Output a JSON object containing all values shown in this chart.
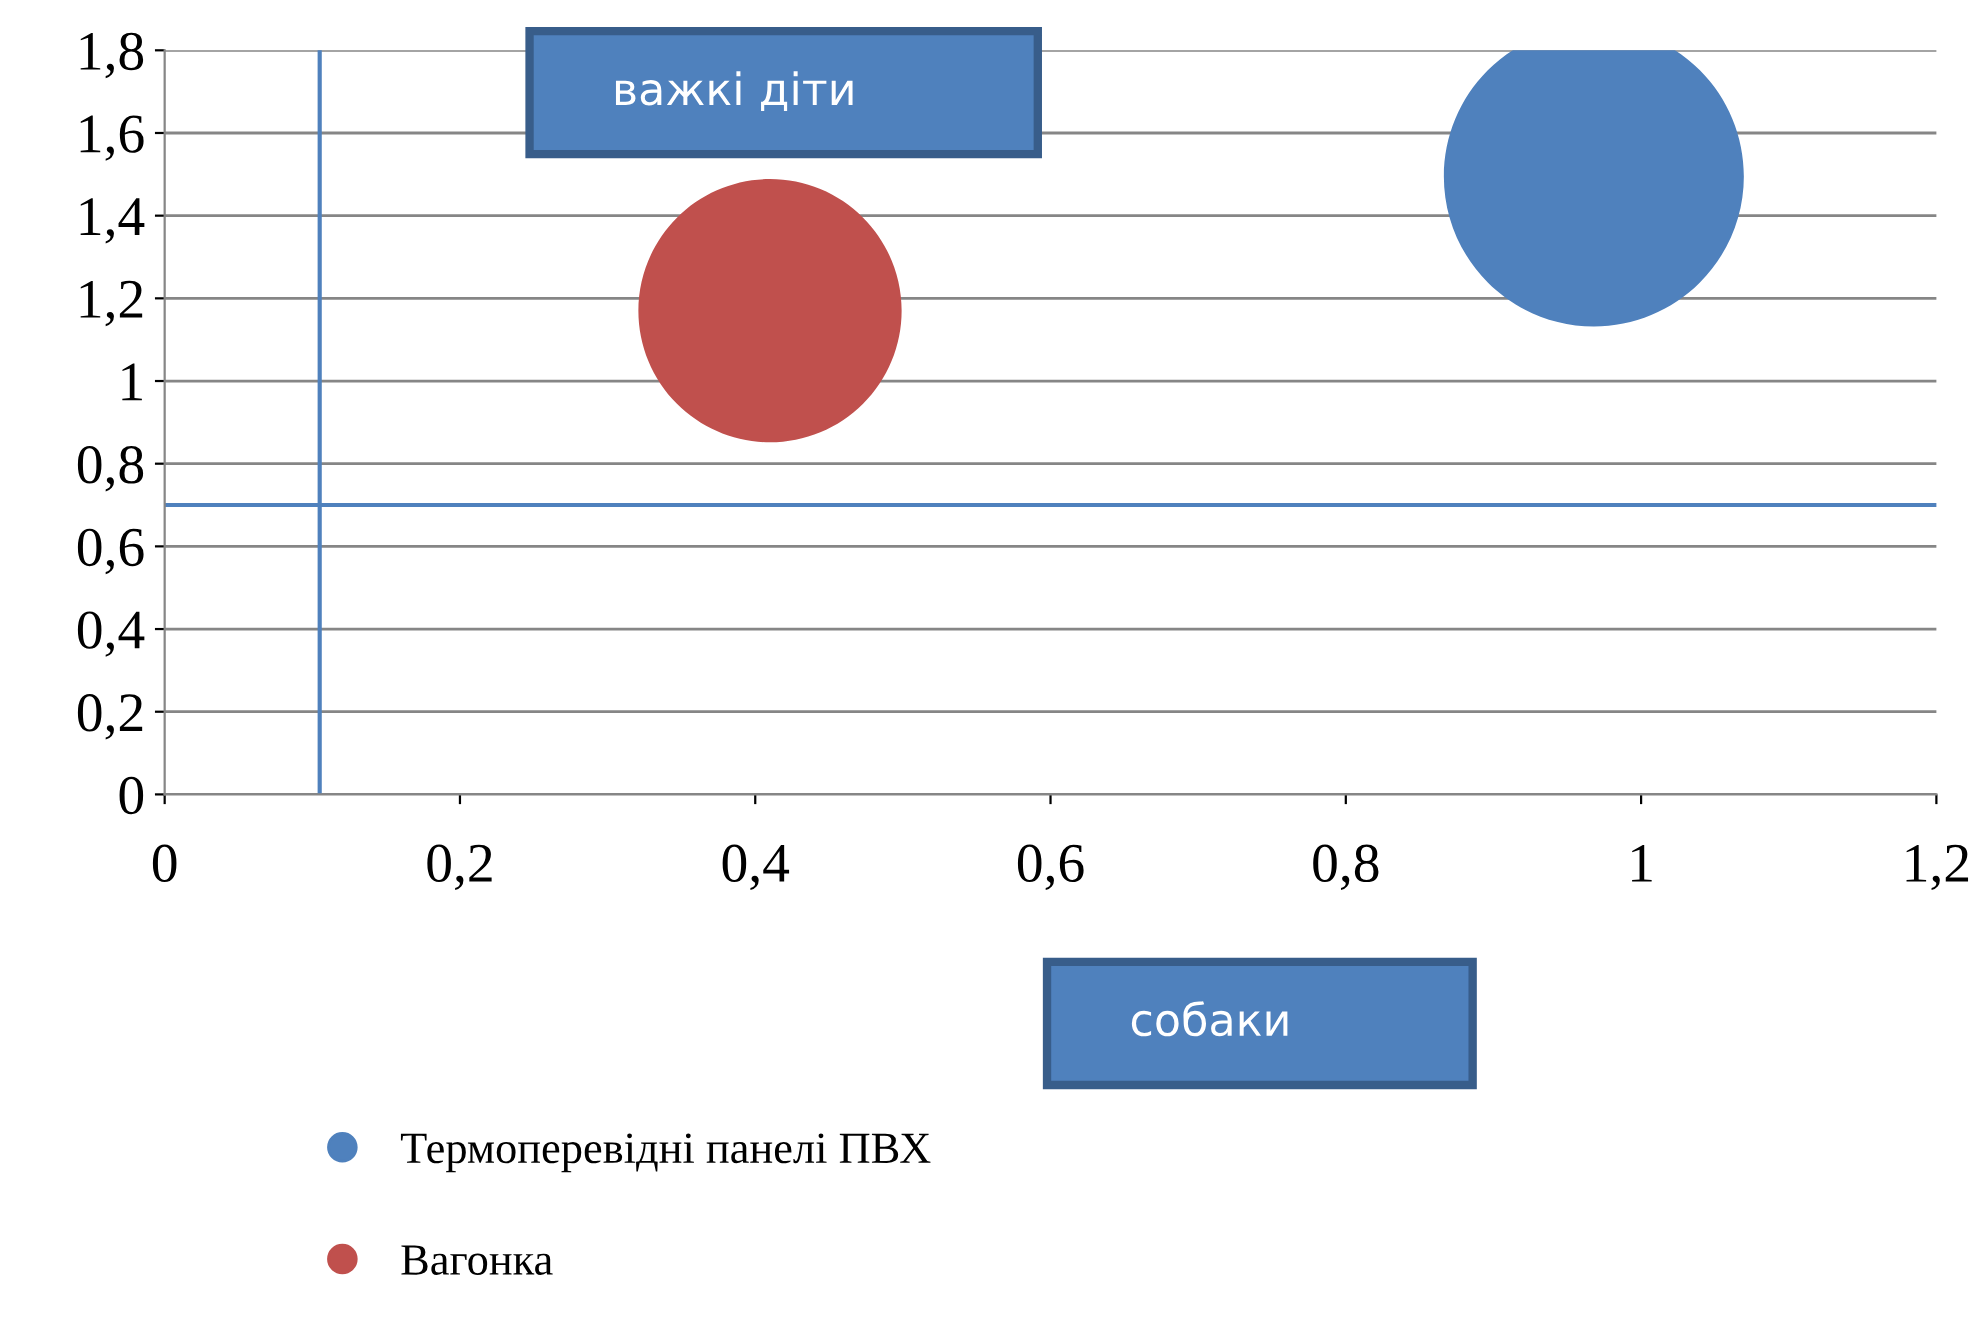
{
  "chart_data": {
    "type": "bubble",
    "series": [
      {
        "name": "Термоперевідні панелі ПВХ",
        "color": "#4f81bd",
        "x": [
          0.968
        ],
        "values": [
          1.495
        ],
        "sizes": [
          1
        ]
      },
      {
        "name": "Вагонка",
        "color": "#c0504d",
        "x": [
          0.41
        ],
        "values": [
          1.17
        ],
        "sizes": [
          0.77
        ]
      }
    ],
    "xlim": [
      0,
      1.2
    ],
    "ylim": [
      0,
      1.8
    ],
    "xticks": [
      0,
      {
        "value": 0.2,
        "label": "0,2"
      },
      {
        "value": 0.4,
        "label": "0,4"
      },
      {
        "value": 0.6,
        "label": "0,6"
      },
      {
        "value": 0.8,
        "label": "0,8"
      },
      1,
      {
        "value": 1.2,
        "label": "1,2"
      }
    ],
    "yticks": [
      0,
      {
        "value": 0.2,
        "label": "0,2"
      },
      {
        "value": 0.4,
        "label": "0,4"
      },
      {
        "value": 0.6,
        "label": "0,6"
      },
      {
        "value": 0.8,
        "label": "0,8"
      },
      1,
      {
        "value": 1.2,
        "label": "1,2"
      },
      {
        "value": 1.4,
        "label": "1,4"
      },
      {
        "value": 1.6,
        "label": "1,6"
      },
      {
        "value": 1.8,
        "label": "1,8"
      }
    ],
    "ref_lines": [
      {
        "axis": "x",
        "value": 0.105,
        "color": "#4f81bd"
      },
      {
        "axis": "y",
        "value": 0.7,
        "color": "#4f81bd"
      }
    ],
    "annotations": [
      "важкі діти",
      "собаки"
    ],
    "grid": "y",
    "legend": "bottom",
    "marker": "circle"
  }
}
